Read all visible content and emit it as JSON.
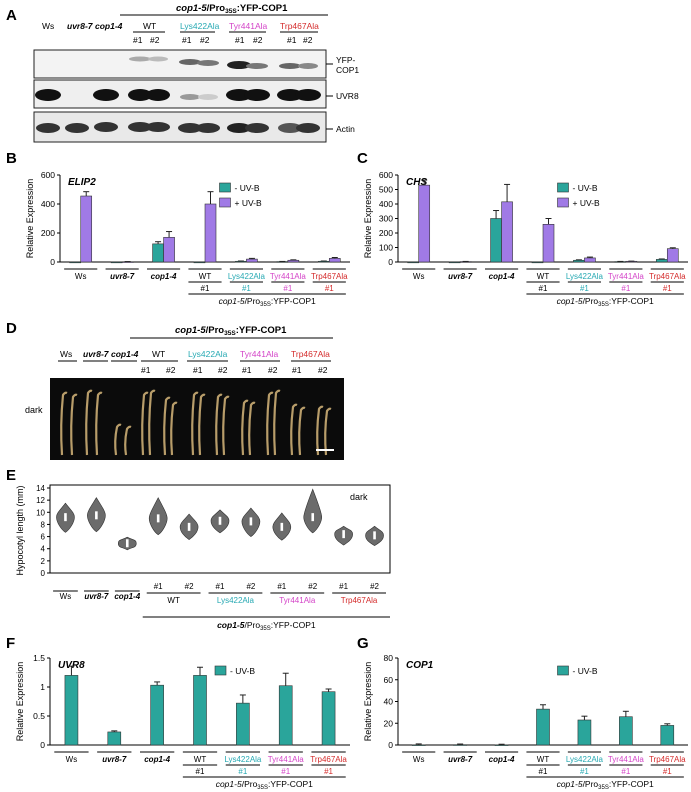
{
  "colors": {
    "teal": "#2aa59b",
    "purple": "#a07ae6",
    "lys": "#27a9b3",
    "tyr": "#d444c8",
    "trp": "#d42b2b",
    "violin": "#6b6b6b"
  },
  "panelA": {
    "label": "A",
    "header": "cop1-5/Pro35S:YFP-COP1",
    "lanes": [
      "Ws",
      "uvr8-7",
      "cop1-4"
    ],
    "groups": [
      "WT",
      "Lys422Ala",
      "Tyr441Ala",
      "Trp467Ala"
    ],
    "rep1": "#1",
    "rep2": "#2",
    "blots": [
      "YFP-\nCOP1",
      "UVR8",
      "Actin"
    ],
    "blot_labels": [
      "YFP-",
      "COP1",
      "UVR8",
      "Actin"
    ]
  },
  "shared": {
    "categories": [
      "Ws",
      "uvr8-7",
      "cop1-4",
      "WT",
      "Lys422Ala",
      "Tyr441Ala",
      "Trp467Ala"
    ],
    "rep": "#1",
    "construct": "cop1-5/Pro35S:YFP-COP1",
    "legend_minus": "- UV-B",
    "legend_plus": "+ UV-B",
    "ylabel": "Relative Expression"
  },
  "chart_data": [
    {
      "panel": "B",
      "type": "bar",
      "title": "ELIP2",
      "ylabel": "Relative Expression",
      "ylim": [
        0,
        600
      ],
      "yticks": [
        "0",
        "200",
        "400",
        "600"
      ],
      "categories": [
        "Ws",
        "uvr8-7",
        "cop1-4",
        "WT #1",
        "Lys422Ala #1",
        "Tyr441Ala #1",
        "Trp467Ala #1"
      ],
      "series": [
        {
          "name": "- UV-B",
          "values": [
            0,
            0,
            125,
            0,
            5,
            3,
            5
          ],
          "errors": [
            0,
            0,
            15,
            0,
            2,
            1,
            2
          ]
        },
        {
          "name": "+ UV-B",
          "values": [
            455,
            2,
            170,
            400,
            20,
            12,
            25
          ],
          "errors": [
            30,
            1,
            40,
            85,
            5,
            3,
            6
          ]
        }
      ]
    },
    {
      "panel": "C",
      "type": "bar",
      "title": "CHS",
      "ylabel": "Relative Expression",
      "ylim": [
        0,
        600
      ],
      "yticks": [
        "0",
        "100",
        "200",
        "300",
        "400",
        "500",
        "600"
      ],
      "categories": [
        "Ws",
        "uvr8-7",
        "cop1-4",
        "WT #1",
        "Lys422Ala #1",
        "Tyr441Ala #1",
        "Trp467Ala #1"
      ],
      "series": [
        {
          "name": "- UV-B",
          "values": [
            0,
            0,
            300,
            0,
            12,
            3,
            18
          ],
          "errors": [
            0,
            0,
            55,
            0,
            3,
            1,
            3
          ]
        },
        {
          "name": "+ UV-B",
          "values": [
            530,
            3,
            415,
            260,
            28,
            5,
            92
          ],
          "errors": [
            35,
            1,
            120,
            40,
            6,
            1,
            6
          ]
        }
      ]
    },
    {
      "panel": "E",
      "type": "violin",
      "ylabel": "Hypocotyl length (mm)",
      "ylim": [
        0,
        14
      ],
      "yticks": [
        "0",
        "2",
        "4",
        "6",
        "8",
        "10",
        "12",
        "14"
      ],
      "annotation": "dark",
      "categories": [
        "Ws",
        "uvr8-7",
        "cop1-4",
        "WT #1",
        "WT #2",
        "Lys422Ala #1",
        "Lys422Ala #2",
        "Tyr441Ala #1",
        "Tyr441Ala #2",
        "Trp467Ala #1",
        "Trp467Ala #2"
      ],
      "medians": [
        9.2,
        9.5,
        4.9,
        9.0,
        7.6,
        8.6,
        8.5,
        7.6,
        9.2,
        6.4,
        6.2
      ],
      "mins": [
        6.7,
        6.8,
        3.8,
        6.3,
        5.5,
        6.6,
        6.0,
        5.4,
        6.6,
        4.6,
        4.5
      ],
      "maxs": [
        11.5,
        12.4,
        5.9,
        12.4,
        9.7,
        10.4,
        10.7,
        9.9,
        13.8,
        7.7,
        7.7
      ]
    },
    {
      "panel": "F",
      "type": "bar",
      "title": "UVR8",
      "ylabel": "Relative Expression",
      "ylim": [
        0,
        1.6
      ],
      "yticks": [
        "0",
        "0.5",
        "1",
        "1.5"
      ],
      "categories": [
        "Ws",
        "uvr8-7",
        "cop1-4",
        "WT #1",
        "Lys422Ala #1",
        "Tyr441Ala #1",
        "Trp467Ala #1"
      ],
      "series": [
        {
          "name": "- UV-B",
          "values": [
            1.28,
            0.24,
            1.1,
            1.28,
            0.77,
            1.09,
            0.98
          ],
          "errors": [
            0.17,
            0.02,
            0.06,
            0.15,
            0.15,
            0.23,
            0.05
          ]
        }
      ]
    },
    {
      "panel": "G",
      "type": "bar",
      "title": "COP1",
      "ylabel": "Relative Expression",
      "ylim": [
        0,
        80
      ],
      "yticks": [
        "0",
        "20",
        "40",
        "60",
        "80"
      ],
      "categories": [
        "Ws",
        "uvr8-7",
        "cop1-4",
        "WT #1",
        "Lys422Ala #1",
        "Tyr441Ala #1",
        "Trp467Ala #1"
      ],
      "series": [
        {
          "name": "- UV-B",
          "values": [
            0.2,
            0.3,
            0.2,
            33,
            23,
            26,
            18
          ],
          "errors": [
            0.8,
            0.6,
            0.5,
            4,
            3.5,
            5,
            1.5
          ]
        }
      ]
    }
  ],
  "panelD": {
    "label": "D",
    "condition": "dark"
  },
  "panelE": {
    "label": "E"
  },
  "panelB": {
    "label": "B"
  },
  "panelC": {
    "label": "C"
  },
  "panelF": {
    "label": "F"
  },
  "panelG": {
    "label": "G"
  }
}
